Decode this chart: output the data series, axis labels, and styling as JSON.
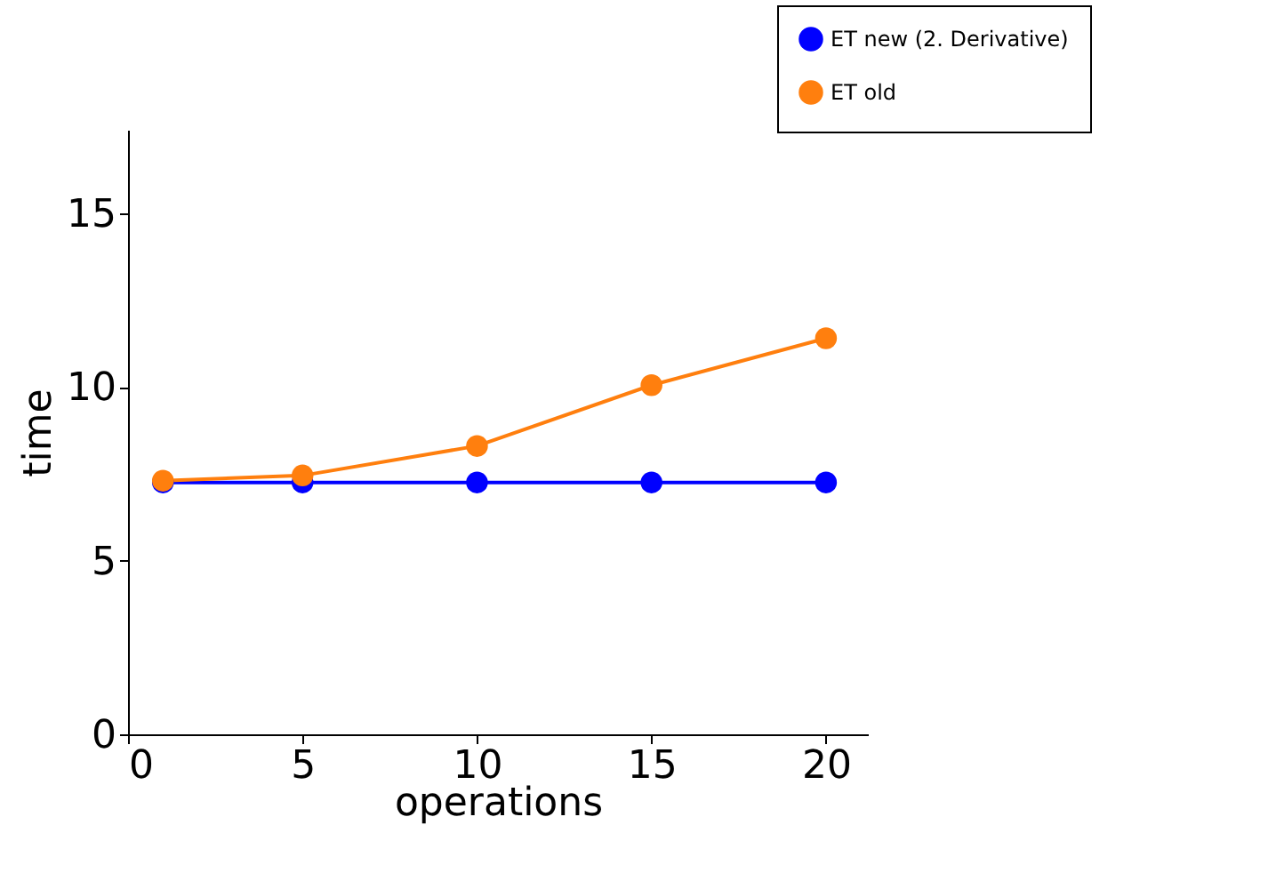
{
  "chart_data": {
    "type": "line",
    "xlabel": "operations",
    "ylabel": "time",
    "xlim": [
      0,
      21.2
    ],
    "ylim": [
      0,
      17.4
    ],
    "xticks": [
      0,
      5,
      10,
      15,
      20
    ],
    "yticks": [
      0,
      5,
      10,
      15
    ],
    "x": [
      1,
      5,
      10,
      15,
      20
    ],
    "marker": "circle",
    "grid": false,
    "legend": "top right",
    "series": [
      {
        "name": "ET new (2. Derivative)",
        "color": "#0000ff",
        "values": [
          7.25,
          7.25,
          7.25,
          7.25,
          7.25
        ]
      },
      {
        "name": "ET old",
        "color": "#ff7f0e",
        "values": [
          7.3,
          7.45,
          8.3,
          10.05,
          11.4
        ]
      }
    ]
  }
}
